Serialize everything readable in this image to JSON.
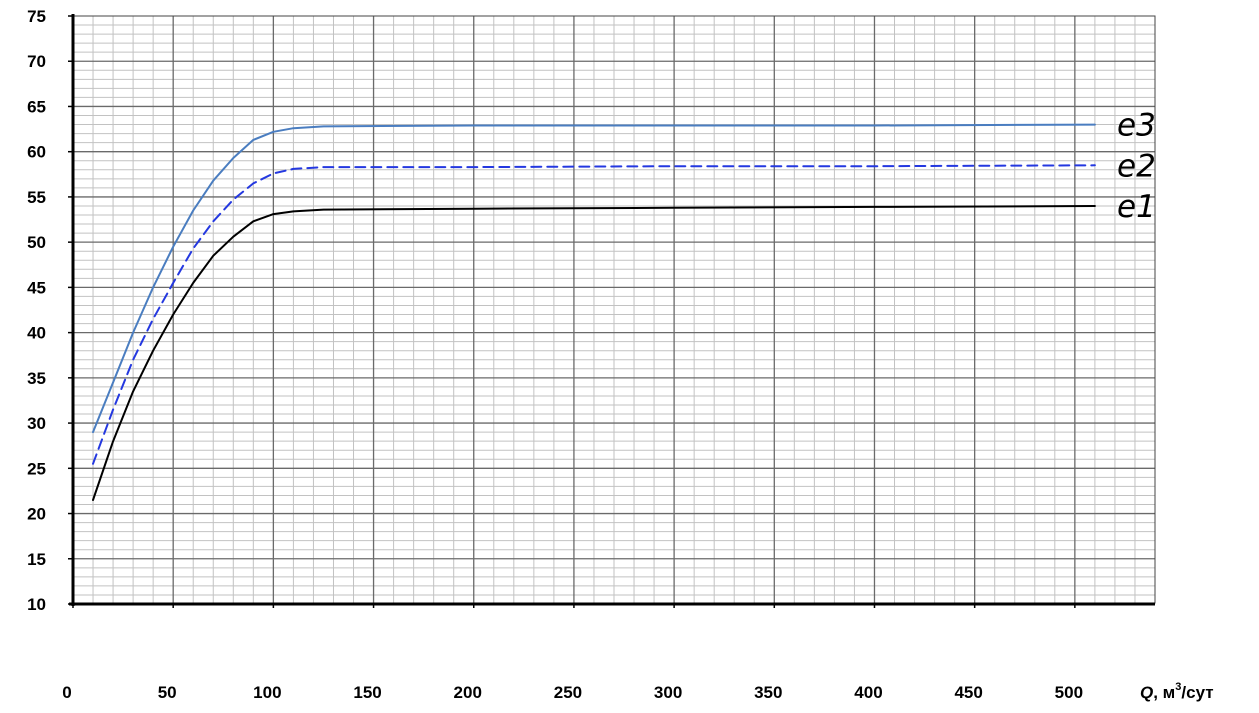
{
  "chart_data": {
    "type": "line",
    "title": "",
    "xlabel": "Q, м³/сут",
    "xlabel_parts": {
      "var": "Q",
      "unit_pre": ", м",
      "unit_sup": "3",
      "unit_post": "/сут"
    },
    "ylabel": "",
    "xlim": [
      0,
      540
    ],
    "ylim": [
      10,
      75
    ],
    "x_ticks": [
      "0",
      "50",
      "100",
      "150",
      "200",
      "250",
      "300",
      "350",
      "400",
      "450",
      "500"
    ],
    "y_ticks": [
      "10",
      "15",
      "20",
      "25",
      "30",
      "35",
      "40",
      "45",
      "50",
      "55",
      "60",
      "65",
      "70",
      "75"
    ],
    "grid": true,
    "legend": "labels at right end of lines",
    "series": [
      {
        "name": "e3",
        "color": "#4a7dc0",
        "style": "solid",
        "points": [
          [
            10,
            29.0
          ],
          [
            20,
            34.5
          ],
          [
            30,
            40.0
          ],
          [
            40,
            45.0
          ],
          [
            50,
            49.5
          ],
          [
            60,
            53.5
          ],
          [
            70,
            56.8
          ],
          [
            80,
            59.3
          ],
          [
            90,
            61.3
          ],
          [
            100,
            62.2
          ],
          [
            110,
            62.6
          ],
          [
            125,
            62.8
          ],
          [
            200,
            62.9
          ],
          [
            300,
            62.9
          ],
          [
            400,
            62.9
          ],
          [
            510,
            63.0
          ]
        ]
      },
      {
        "name": "e2",
        "color": "#2438e0",
        "style": "dashed",
        "points": [
          [
            10,
            25.5
          ],
          [
            20,
            31.5
          ],
          [
            30,
            37.0
          ],
          [
            40,
            41.5
          ],
          [
            50,
            45.5
          ],
          [
            60,
            49.3
          ],
          [
            70,
            52.3
          ],
          [
            80,
            54.7
          ],
          [
            90,
            56.5
          ],
          [
            100,
            57.6
          ],
          [
            110,
            58.1
          ],
          [
            125,
            58.3
          ],
          [
            200,
            58.3
          ],
          [
            300,
            58.4
          ],
          [
            400,
            58.4
          ],
          [
            510,
            58.5
          ]
        ]
      },
      {
        "name": "e1",
        "color": "#000000",
        "style": "solid",
        "points": [
          [
            10,
            21.5
          ],
          [
            20,
            28.0
          ],
          [
            30,
            33.5
          ],
          [
            40,
            38.0
          ],
          [
            50,
            42.0
          ],
          [
            60,
            45.5
          ],
          [
            70,
            48.5
          ],
          [
            80,
            50.6
          ],
          [
            90,
            52.3
          ],
          [
            100,
            53.1
          ],
          [
            110,
            53.4
          ],
          [
            125,
            53.6
          ],
          [
            200,
            53.7
          ],
          [
            300,
            53.8
          ],
          [
            400,
            53.9
          ],
          [
            510,
            54.0
          ]
        ]
      }
    ]
  }
}
